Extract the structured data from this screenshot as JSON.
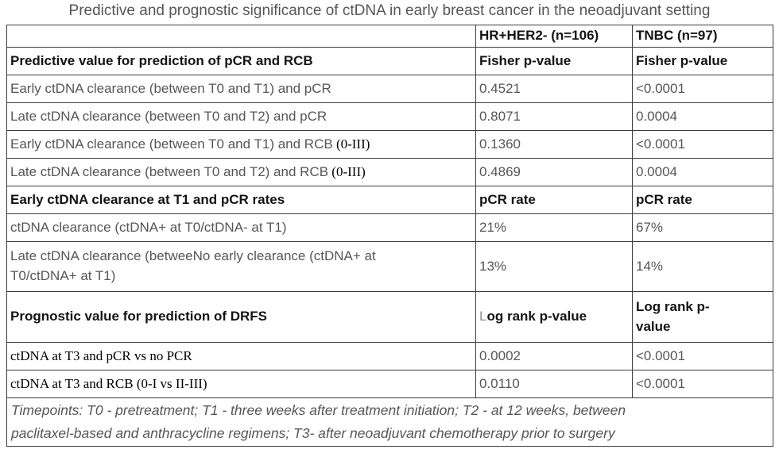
{
  "title": "Predictive and prognostic significance of ctDNA in early breast cancer in the neoadjuvant setting",
  "colors": {
    "text_gray": "#54565b",
    "text_black": "#141414",
    "border": "#3d3d3d",
    "background": "#ffffff"
  },
  "table": {
    "header": {
      "col1": "",
      "col2": "HR+HER2- (n=106)",
      "col3": "TNBC (n=97)"
    },
    "rows": [
      {
        "label": "Predictive value for prediction of pCR and RCB",
        "col2": "Fisher p-value",
        "col3": "Fisher p-value"
      },
      {
        "label": "Early ctDNA clearance (between T0 and T1) and pCR",
        "col2": "0.4521",
        "col3": "<0.0001"
      },
      {
        "label": "Late ctDNA clearance (between T0 and T2) and pCR",
        "col2": "0.8071",
        "col3": "0.0004"
      },
      {
        "label": "Early ctDNA clearance (between T0 and T1) and RCB",
        "label_serif": " (0-III)",
        "col2": "0.1360",
        "col3": "<0.0001"
      },
      {
        "label": "Late ctDNA clearance (between T0 and T2) and RCB",
        "label_serif": " (0-III)",
        "col2": "0.4869",
        "col3": "0.0004"
      },
      {
        "label": "Early ctDNA clearance at T1 and pCR rates",
        "col2": "pCR rate",
        "col3": "pCR rate"
      },
      {
        "label": "ctDNA clearance (ctDNA+ at T0/ctDNA- at T1)",
        "col2": "21%",
        "col3": "67%"
      },
      {
        "label": "Late ctDNA clearance (betweeNo early clearance (ctDNA+ at\nT0/ctDNA+ at T1)",
        "col2": "13%",
        "col3": "14%"
      },
      {
        "label": "Prognostic value for prediction of DRFS",
        "col2_prefix": "L",
        "col2_rest": "og rank p-value",
        "col3": "Log rank p-\nvalue"
      },
      {
        "label": "ctDNA at T3 and pCR vs no PCR",
        "col2": "0.0002",
        "col3": "<0.0001"
      },
      {
        "label": "ctDNA at T3 and RCB (0-I vs II-III)",
        "col2": "0.0110",
        "col3": "<0.0001"
      }
    ],
    "footer": "Timepoints: T0 - pretreatment; T1 - three weeks after treatment initiation; T2 - at 12 weeks, between\npaclitaxel-based and anthracycline regimens; T3- after neoadjuvant chemotherapy prior to surgery"
  }
}
